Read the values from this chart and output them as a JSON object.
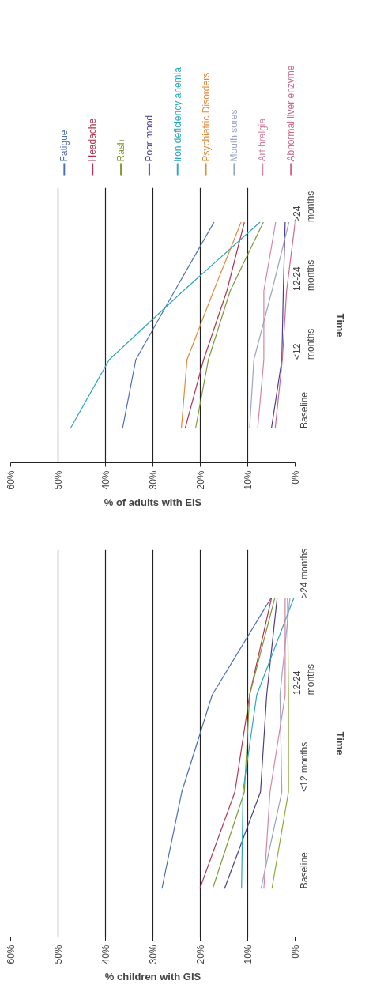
{
  "chart_data": [
    {
      "type": "line",
      "orientation": "horizontal",
      "ylabel": "Time",
      "xlabel": "% children with GIS",
      "categories": [
        ">24 months",
        "12-24\nmonths",
        "<12 months",
        "Baseline"
      ],
      "xlim": [
        60,
        0
      ],
      "xticks": [
        {
          "value": 60,
          "label": "60%"
        },
        {
          "value": 50,
          "label": "50%"
        },
        {
          "value": 40,
          "label": "40%"
        },
        {
          "value": 30,
          "label": "30%"
        },
        {
          "value": 20,
          "label": "20%"
        },
        {
          "value": 10,
          "label": "10%"
        },
        {
          "value": 0,
          "label": "0%"
        }
      ],
      "grid": "x",
      "series": [
        {
          "color": "#4a6db4",
          "values": [
            5.1,
            17.5,
            23.9,
            28.1
          ]
        },
        {
          "color": "#b23450",
          "values": [
            5.0,
            9.6,
            12.7,
            20.1
          ]
        },
        {
          "color": "#7b9b36",
          "values": [
            4.3,
            9.6,
            10.7,
            17.4
          ]
        },
        {
          "color": "#4a3d8e",
          "values": [
            3.8,
            6.0,
            7.3,
            14.9
          ]
        },
        {
          "color": "#2ea6bd",
          "values": [
            0.3,
            8.1,
            11.0,
            11.3
          ]
        },
        {
          "color": "#99a4c6",
          "values": [
            1.1,
            3.2,
            2.8,
            7.2
          ]
        },
        {
          "color": "#d7849e",
          "values": [
            2.1,
            2.1,
            5.3,
            6.6
          ]
        },
        {
          "color": "#8aaa3c",
          "values": [
            1.6,
            1.4,
            1.4,
            4.9
          ]
        }
      ]
    },
    {
      "type": "line",
      "orientation": "horizontal",
      "ylabel": "Time",
      "xlabel": "% of adults with EIS",
      "categories": [
        ">24\nmonths",
        "12-24\nmonths",
        "<12\nmonths",
        "Baseline"
      ],
      "xlim": [
        60,
        0
      ],
      "xticks": [
        {
          "value": 60,
          "label": "60%"
        },
        {
          "value": 50,
          "label": "50%"
        },
        {
          "value": 40,
          "label": "40%"
        },
        {
          "value": 30,
          "label": "30%"
        },
        {
          "value": 20,
          "label": "20%"
        },
        {
          "value": 10,
          "label": "10%"
        },
        {
          "value": 0,
          "label": "0%"
        }
      ],
      "grid": "x",
      "legend": "top",
      "series": [
        {
          "name": "Fatigue",
          "color": "#4a6db4",
          "values": [
            17.1,
            25.4,
            33.6,
            36.4
          ]
        },
        {
          "name": "Headache",
          "color": "#b23450",
          "values": [
            10.7,
            14.4,
            19.3,
            23.2
          ]
        },
        {
          "name": "Rash",
          "color": "#7b9b36",
          "values": [
            6.7,
            13.7,
            18.3,
            21.0
          ]
        },
        {
          "name": "Poor mood",
          "color": "#4a3d8e",
          "values": [
            2.1,
            2.5,
            2.8,
            5.0
          ]
        },
        {
          "name": "iron deficiency anemia",
          "color": "#2ea6bd",
          "values": [
            7.4,
            23.6,
            39.2,
            47.4
          ]
        },
        {
          "name": "Psychiatric Disorders",
          "color": "#e08a3c",
          "values": [
            11.4,
            17.2,
            22.8,
            24.0
          ]
        },
        {
          "name": "Mouth sores",
          "color": "#99a4c6",
          "values": [
            1.3,
            4.9,
            8.7,
            9.6
          ]
        },
        {
          "name": "Art hralgia",
          "color": "#d7849e",
          "values": [
            4.1,
            6.6,
            6.6,
            7.9
          ]
        },
        {
          "name": "Abnormal liver enzyme",
          "color": "#cc6a86",
          "values": [
            0,
            1.8,
            2.7,
            4.2
          ]
        }
      ]
    }
  ]
}
